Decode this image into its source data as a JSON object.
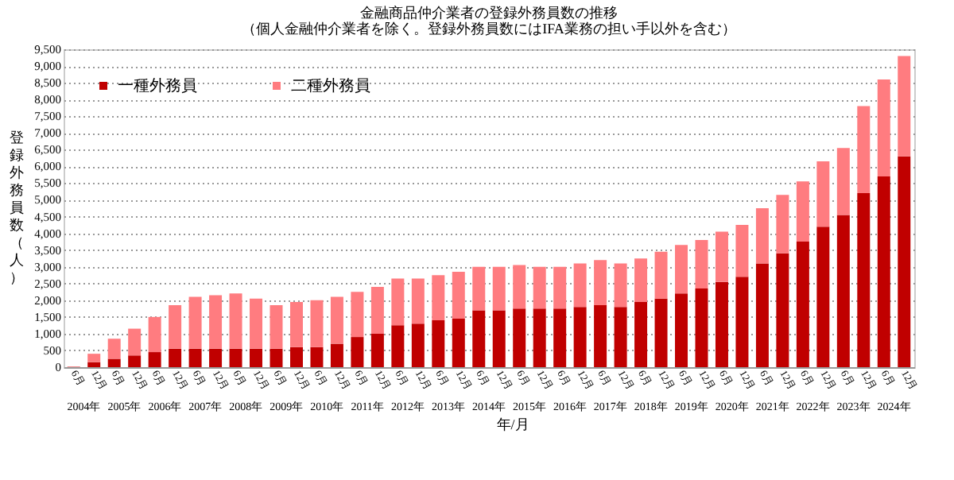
{
  "chart_data": {
    "type": "bar",
    "stacked": true,
    "title": "金融商品仲介業者の登録外務員数の推移",
    "subtitle": "（個人金融仲介業者を除く。登録外務員数にはIFA業務の担い手以外を含む）",
    "xlabel": "年/月",
    "ylabel": "登録外務員数（人）",
    "categories": [
      "6月",
      "12月",
      "6月",
      "12月",
      "6月",
      "12月",
      "6月",
      "12月",
      "6月",
      "12月",
      "6月",
      "12月",
      "6月",
      "12月",
      "6月",
      "12月",
      "6月",
      "12月",
      "6月",
      "12月",
      "6月",
      "12月",
      "6月",
      "12月",
      "6月",
      "12月",
      "6月",
      "12月",
      "6月",
      "12月",
      "6月",
      "12月",
      "6月",
      "12月",
      "6月",
      "12月",
      "6月",
      "12月",
      "6月",
      "12月",
      "6月",
      "12月"
    ],
    "annotations": [
      "2004年",
      "2005年",
      "2006年",
      "2007年",
      "2008年",
      "2009年",
      "2010年",
      "2011年",
      "2012年",
      "2013年",
      "2014年",
      "2015年",
      "2016年",
      "2017年",
      "2018年",
      "2019年",
      "2020年",
      "2021年",
      "2022年",
      "2023年",
      "2024年"
    ],
    "series": [
      {
        "name": "一種外務員",
        "color": "#c00000",
        "values": [
          10,
          150,
          250,
          350,
          450,
          550,
          550,
          550,
          550,
          550,
          550,
          600,
          600,
          700,
          900,
          1000,
          1250,
          1300,
          1400,
          1450,
          1700,
          1700,
          1750,
          1750,
          1750,
          1800,
          1850,
          1800,
          1950,
          2050,
          2200,
          2350,
          2550,
          2700,
          3100,
          3400,
          3750,
          4200,
          4550,
          5200,
          5700,
          6300
        ]
      },
      {
        "name": "二種外務員",
        "color": "#ff7c80",
        "values": [
          10,
          250,
          600,
          800,
          1050,
          1300,
          1550,
          1600,
          1650,
          1500,
          1300,
          1350,
          1400,
          1400,
          1350,
          1400,
          1400,
          1350,
          1350,
          1400,
          1300,
          1300,
          1300,
          1250,
          1250,
          1300,
          1350,
          1300,
          1300,
          1400,
          1450,
          1450,
          1500,
          1550,
          1650,
          1750,
          1800,
          1950,
          2000,
          2600,
          2900,
          3000
        ]
      }
    ],
    "ylim": [
      0,
      9500
    ],
    "yticks": [
      {
        "value": 0,
        "label": "0"
      },
      {
        "value": 500,
        "label": "500"
      },
      {
        "value": 1000,
        "label": "1,000"
      },
      {
        "value": 1500,
        "label": "1,500"
      },
      {
        "value": 2000,
        "label": "2,000"
      },
      {
        "value": 2500,
        "label": "2,500"
      },
      {
        "value": 3000,
        "label": "3,000"
      },
      {
        "value": 3500,
        "label": "3,500"
      },
      {
        "value": 4000,
        "label": "4,000"
      },
      {
        "value": 4500,
        "label": "4,500"
      },
      {
        "value": 5000,
        "label": "5,000"
      },
      {
        "value": 5500,
        "label": "5,500"
      },
      {
        "value": 6000,
        "label": "6,000"
      },
      {
        "value": 6500,
        "label": "6,500"
      },
      {
        "value": 7000,
        "label": "7,000"
      },
      {
        "value": 7500,
        "label": "7,500"
      },
      {
        "value": 8000,
        "label": "8,000"
      },
      {
        "value": 8500,
        "label": "8,500"
      },
      {
        "value": 9000,
        "label": "9,000"
      },
      {
        "value": 9500,
        "label": "9,500"
      }
    ],
    "grid": "y",
    "legend": "top left"
  }
}
